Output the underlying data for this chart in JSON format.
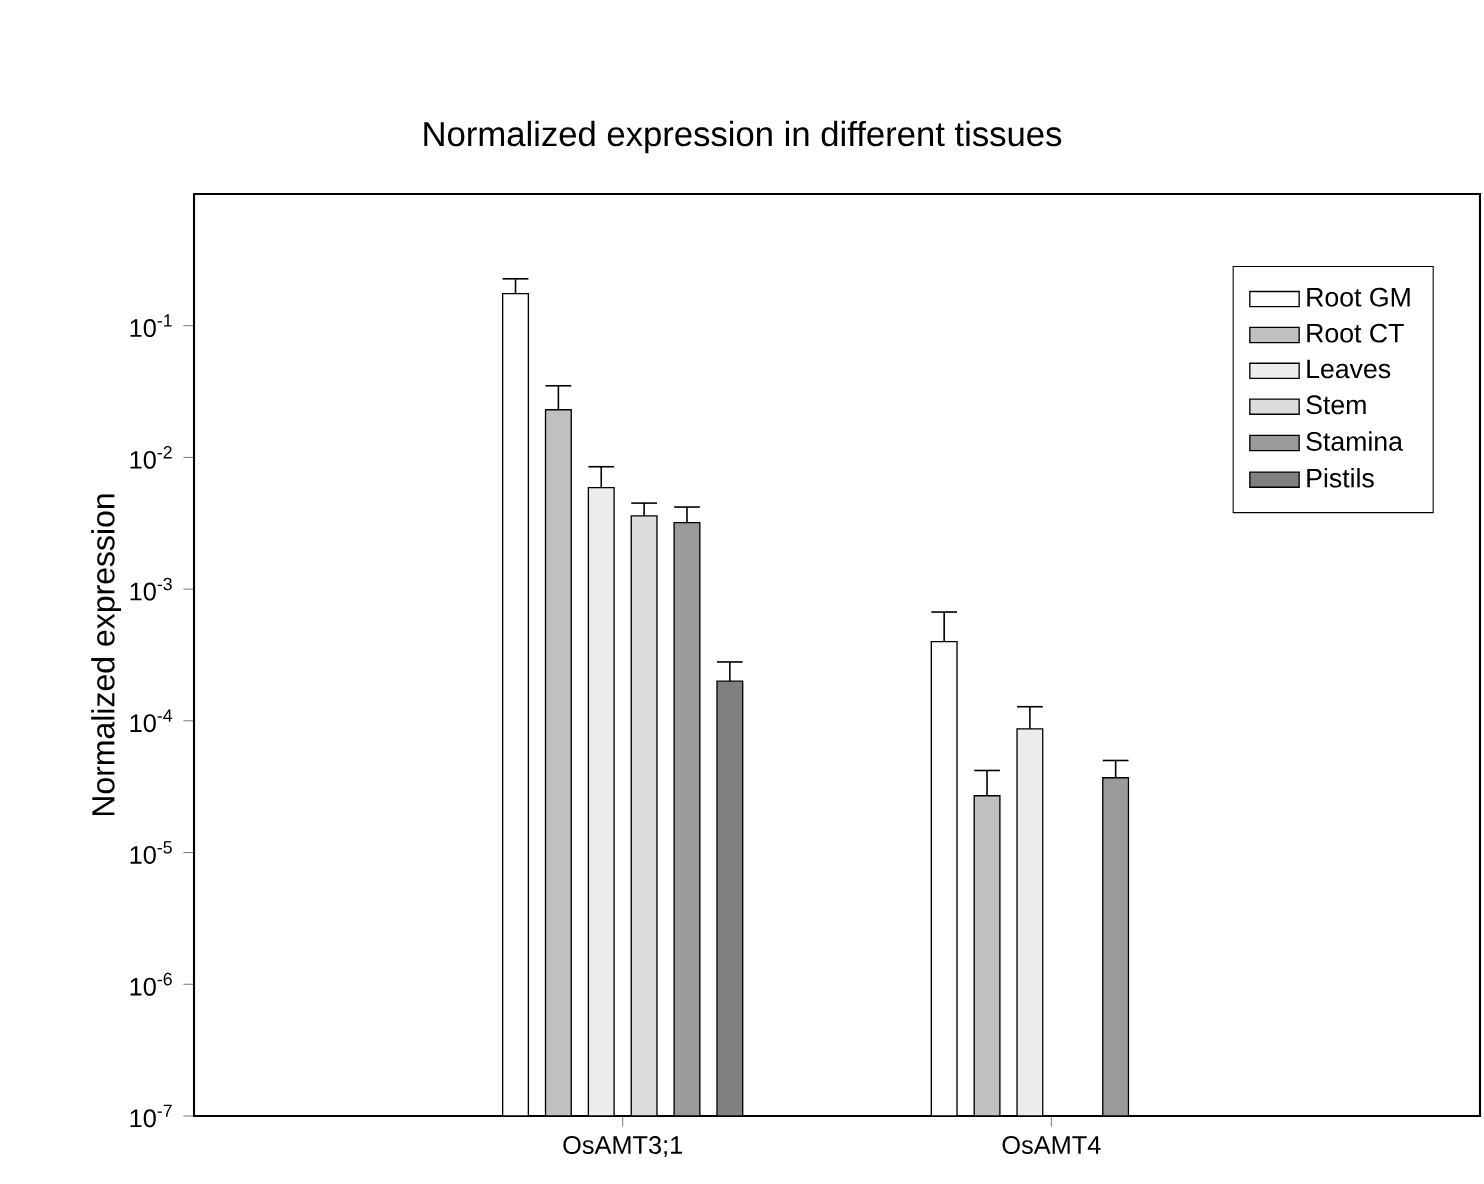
{
  "chart_data": {
    "type": "bar",
    "title": "Normalized expression in different tissues",
    "ylabel": "Normalized expression",
    "categories": [
      "OsAMT3;1",
      "OsAMT4"
    ],
    "log": "y",
    "ylim": [
      1e-07,
      1
    ],
    "yticks": [
      {
        "value": 1e-07,
        "label": "10$^{-7}$"
      },
      {
        "value": 1e-06,
        "label": "10$^{-6}$"
      },
      {
        "value": 1e-05,
        "label": "10$^{-5}$"
      },
      {
        "value": 0.0001,
        "label": "10$^{-4}$"
      },
      {
        "value": 0.001,
        "label": "10$^{-3}$"
      },
      {
        "value": 0.01,
        "label": "10$^{-2}$"
      },
      {
        "value": 0.1,
        "label": "10$^{-1}$"
      }
    ],
    "legend": "top right",
    "grid": false,
    "series": [
      {
        "name": "Root GM",
        "color": "#ffffff",
        "values": [
          0.175,
          0.0004
        ],
        "errors": [
          [
            0.175,
            0.227
          ],
          [
            0.0004,
            0.00067
          ]
        ]
      },
      {
        "name": "Root CT",
        "color": "#c0c0c0",
        "values": [
          0.023,
          2.7e-05
        ],
        "errors": [
          [
            0.023,
            0.035
          ],
          [
            2.7e-05,
            4.2e-05
          ]
        ]
      },
      {
        "name": "Leaves",
        "color": "#ececec",
        "values": [
          0.0059,
          8.7e-05
        ],
        "errors": [
          [
            0.0059,
            0.0085
          ],
          [
            8.7e-05,
            0.000128
          ]
        ]
      },
      {
        "name": "Stem",
        "color": "#dcdcdc",
        "values": [
          0.0036,
          null
        ],
        "errors": [
          [
            0.0036,
            0.0045
          ],
          null
        ]
      },
      {
        "name": "Stamina",
        "color": "#9a9a9a",
        "values": [
          0.0032,
          3.7e-05
        ],
        "errors": [
          [
            0.0032,
            0.0042
          ],
          [
            3.7e-05,
            5e-05
          ]
        ]
      },
      {
        "name": "Pistils",
        "color": "#808080",
        "values": [
          0.0002,
          null
        ],
        "errors": [
          [
            0.0002,
            0.00028
          ],
          null
        ]
      }
    ]
  }
}
